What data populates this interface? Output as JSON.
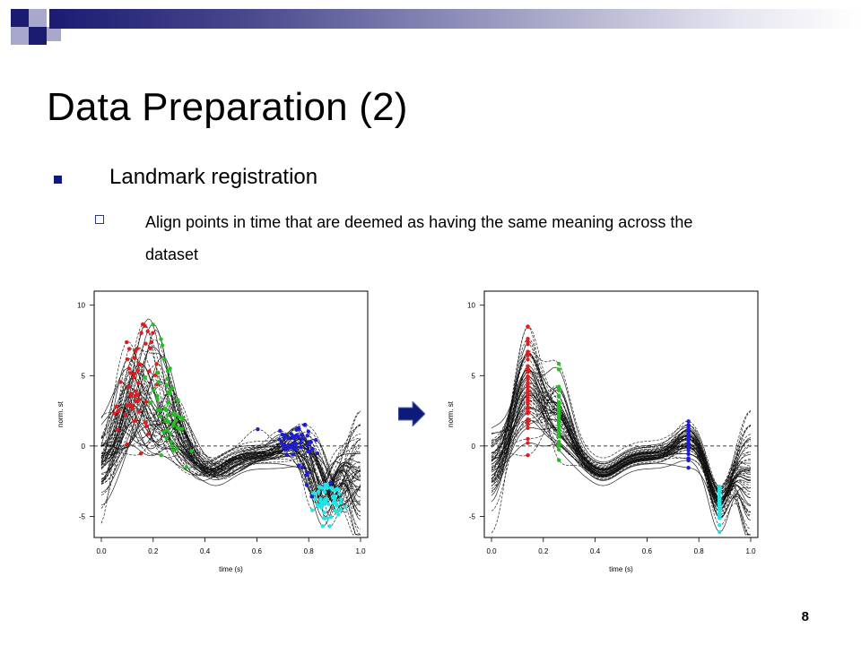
{
  "header": {
    "accent_dark": "#1b1b72",
    "accent_light": "#9a9ac0"
  },
  "slide": {
    "title": "Data Preparation (2)",
    "bullet": "Landmark registration",
    "sub_bullet": "Align points in time that are deemed as having the same meaning across the dataset",
    "page_number": "8"
  },
  "icons": {
    "arrow": "right-arrow-icon"
  },
  "chart_data": [
    {
      "type": "line",
      "title": "",
      "xlabel": "time (s)",
      "ylabel": "norm. st",
      "xlim": [
        0.0,
        1.0
      ],
      "ylim": [
        -6.5,
        11
      ],
      "x_ticks": [
        "0.0",
        "0.2",
        "0.4",
        "0.6",
        "0.8",
        "1.0"
      ],
      "y_ticks": [
        "-5",
        "0",
        "5",
        "10"
      ],
      "reference_line_y": 0,
      "landmark_colors": [
        "#e41a1c",
        "#21c021",
        "#1d1dd6",
        "#1ee6e6"
      ],
      "landmarks_aligned": false
    },
    {
      "type": "line",
      "title": "",
      "xlabel": "time (s)",
      "ylabel": "norm. st",
      "xlim": [
        0.0,
        1.0
      ],
      "ylim": [
        -6.5,
        11
      ],
      "x_ticks": [
        "0.0",
        "0.2",
        "0.4",
        "0.6",
        "0.8",
        "1.0"
      ],
      "y_ticks": [
        "-5",
        "0",
        "5",
        "10"
      ],
      "reference_line_y": 0,
      "landmark_colors": [
        "#e41a1c",
        "#21c021",
        "#1d1dd6",
        "#1ee6e6"
      ],
      "landmarks_aligned": true,
      "landmark_times": [
        0.14,
        0.26,
        0.76,
        0.88
      ]
    }
  ]
}
